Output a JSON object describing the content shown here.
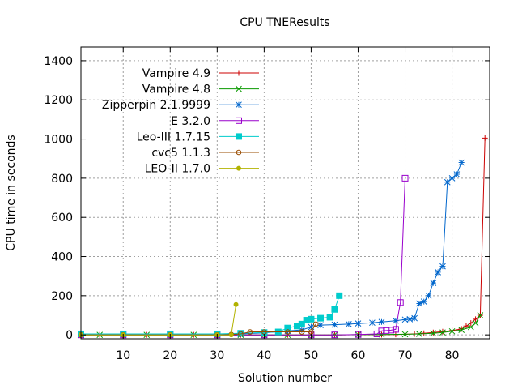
{
  "chart_data": {
    "type": "line",
    "title": "CPU TNEResults",
    "xlabel": "Solution number",
    "ylabel": "CPU time in seconds",
    "xlim": [
      1,
      88
    ],
    "ylim": [
      -20,
      1470
    ],
    "xticks": [
      10,
      20,
      30,
      40,
      50,
      60,
      70,
      80
    ],
    "yticks": [
      0,
      200,
      400,
      600,
      800,
      1000,
      1200,
      1400
    ],
    "xtick_labels": [
      "10",
      "20",
      "30",
      "40",
      "50",
      "60",
      "70",
      "80"
    ],
    "ytick_labels": [
      "0",
      "200",
      "400",
      "600",
      "800",
      "1000",
      "1200",
      "1400"
    ],
    "grid": true,
    "legend_position": "top-left",
    "series": [
      {
        "name": "Vampire 4.9",
        "color": "#cc0000",
        "marker": "plus",
        "points": [
          [
            1,
            0
          ],
          [
            5,
            0
          ],
          [
            10,
            0
          ],
          [
            15,
            0
          ],
          [
            20,
            0
          ],
          [
            25,
            0
          ],
          [
            30,
            0
          ],
          [
            35,
            0
          ],
          [
            40,
            0
          ],
          [
            45,
            0
          ],
          [
            50,
            0
          ],
          [
            55,
            0
          ],
          [
            60,
            1
          ],
          [
            65,
            1
          ],
          [
            68,
            2
          ],
          [
            70,
            3
          ],
          [
            72,
            5
          ],
          [
            74,
            8
          ],
          [
            76,
            12
          ],
          [
            78,
            16
          ],
          [
            80,
            22
          ],
          [
            82,
            30
          ],
          [
            83,
            45
          ],
          [
            84,
            60
          ],
          [
            85,
            80
          ],
          [
            86,
            100
          ],
          [
            87,
            1005
          ]
        ]
      },
      {
        "name": "Vampire 4.8",
        "color": "#0a9900",
        "marker": "x",
        "points": [
          [
            1,
            0
          ],
          [
            5,
            0
          ],
          [
            10,
            0
          ],
          [
            15,
            0
          ],
          [
            20,
            0
          ],
          [
            25,
            0
          ],
          [
            30,
            0
          ],
          [
            35,
            0
          ],
          [
            40,
            0
          ],
          [
            45,
            0
          ],
          [
            50,
            0
          ],
          [
            55,
            0
          ],
          [
            60,
            1
          ],
          [
            65,
            2
          ],
          [
            70,
            3
          ],
          [
            73,
            5
          ],
          [
            76,
            8
          ],
          [
            78,
            12
          ],
          [
            80,
            18
          ],
          [
            82,
            25
          ],
          [
            84,
            40
          ],
          [
            85,
            60
          ],
          [
            86,
            100
          ]
        ]
      },
      {
        "name": "Zipperpin 2.1.9999",
        "color": "#0066cc",
        "marker": "star",
        "points": [
          [
            1,
            0
          ],
          [
            10,
            0
          ],
          [
            20,
            1
          ],
          [
            30,
            2
          ],
          [
            35,
            5
          ],
          [
            40,
            10
          ],
          [
            45,
            20
          ],
          [
            48,
            25
          ],
          [
            50,
            40
          ],
          [
            52,
            50
          ],
          [
            55,
            52
          ],
          [
            58,
            55
          ],
          [
            60,
            58
          ],
          [
            63,
            62
          ],
          [
            65,
            66
          ],
          [
            68,
            72
          ],
          [
            70,
            78
          ],
          [
            71,
            80
          ],
          [
            72,
            85
          ],
          [
            73,
            160
          ],
          [
            74,
            170
          ],
          [
            75,
            200
          ],
          [
            76,
            265
          ],
          [
            77,
            320
          ],
          [
            78,
            350
          ],
          [
            79,
            780
          ],
          [
            80,
            800
          ],
          [
            81,
            820
          ],
          [
            82,
            880
          ]
        ]
      },
      {
        "name": "E 3.2.0",
        "color": "#9900cc",
        "marker": "square-open",
        "points": [
          [
            1,
            0
          ],
          [
            10,
            0
          ],
          [
            20,
            0
          ],
          [
            30,
            0
          ],
          [
            40,
            0
          ],
          [
            50,
            0
          ],
          [
            55,
            0
          ],
          [
            60,
            2
          ],
          [
            64,
            5
          ],
          [
            65,
            20
          ],
          [
            66,
            22
          ],
          [
            67,
            24
          ],
          [
            68,
            28
          ],
          [
            69,
            165
          ],
          [
            70,
            800
          ]
        ]
      },
      {
        "name": "Leo-III 1.7.15",
        "color": "#00cccc",
        "marker": "square-filled",
        "points": [
          [
            1,
            5
          ],
          [
            10,
            5
          ],
          [
            20,
            5
          ],
          [
            30,
            5
          ],
          [
            35,
            8
          ],
          [
            40,
            12
          ],
          [
            43,
            15
          ],
          [
            45,
            35
          ],
          [
            47,
            45
          ],
          [
            48,
            55
          ],
          [
            49,
            75
          ],
          [
            50,
            80
          ],
          [
            52,
            85
          ],
          [
            54,
            90
          ],
          [
            55,
            130
          ],
          [
            56,
            200
          ]
        ]
      },
      {
        "name": "cvc5 1.1.3",
        "color": "#994c00",
        "marker": "circle-open",
        "points": [
          [
            1,
            0
          ],
          [
            10,
            0
          ],
          [
            20,
            0
          ],
          [
            30,
            0
          ],
          [
            33,
            2
          ],
          [
            35,
            5
          ],
          [
            37,
            15
          ],
          [
            40,
            15
          ],
          [
            45,
            15
          ],
          [
            48,
            15
          ],
          [
            50,
            15
          ],
          [
            51,
            55
          ]
        ]
      },
      {
        "name": "LEO-II 1.7.0",
        "color": "#b2b200",
        "marker": "dot",
        "points": [
          [
            1,
            0
          ],
          [
            10,
            0
          ],
          [
            20,
            0
          ],
          [
            30,
            0
          ],
          [
            33,
            0
          ],
          [
            34,
            155
          ]
        ]
      }
    ]
  }
}
